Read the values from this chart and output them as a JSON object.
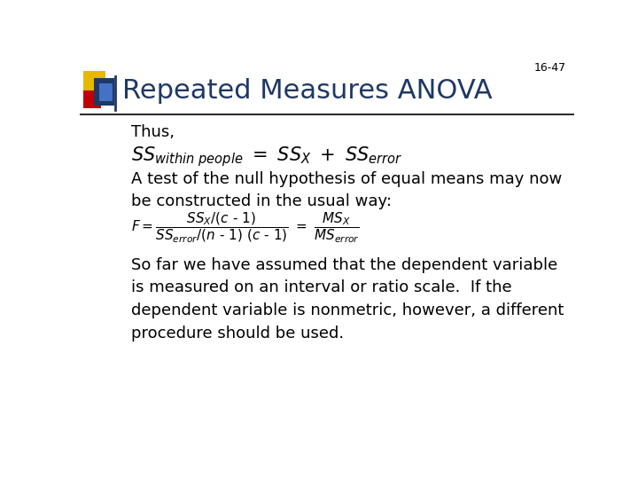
{
  "slide_number": "16-47",
  "title": "Repeated Measures ANOVA",
  "title_color": "#1F3864",
  "background_color": "#FFFFFF",
  "slide_number_color": "#000000",
  "thus_text": "Thus,",
  "text_block1": "A test of the null hypothesis of equal means may now\nbe constructed in the usual way:",
  "text_block2": "So far we have assumed that the dependent variable\nis measured on an interval or ratio scale.  If the\ndependent variable is nonmetric, however, a different\nprocedure should be used.",
  "line_color": "#000000",
  "font_size_title": 22,
  "font_size_body": 13,
  "font_size_slide_num": 9,
  "font_size_eq1": 15,
  "font_size_feq": 11
}
